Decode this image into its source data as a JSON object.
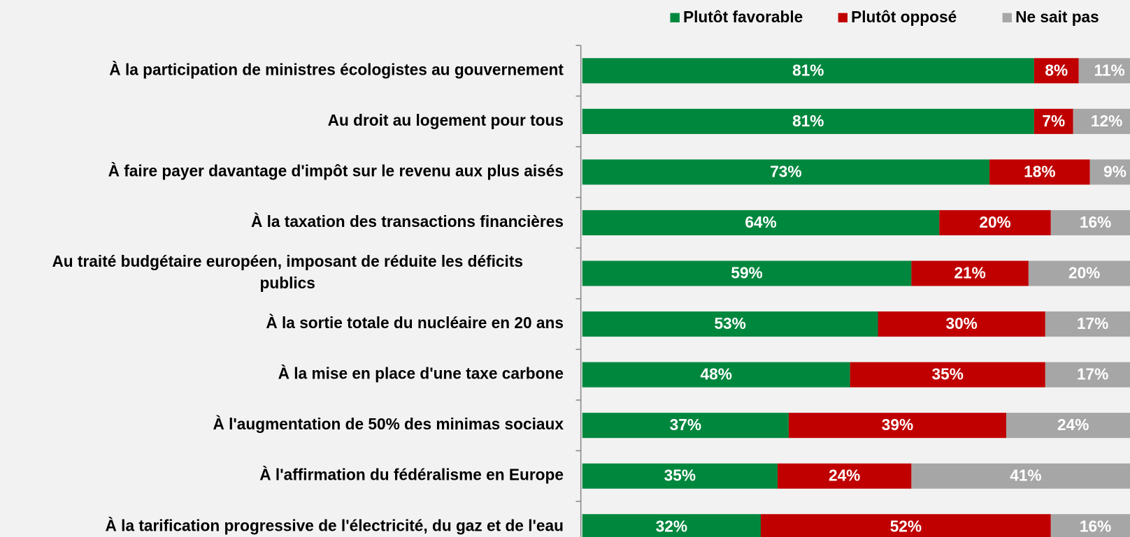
{
  "chart_data": {
    "type": "stacked_barh",
    "categories": [
      "À la participation de ministres écologistes au gouvernement",
      "Au droit au logement pour tous",
      "À faire payer davantage d'impôt sur le revenu aux plus aisés",
      "À la taxation des transactions financières",
      "Au traité budgétaire européen, imposant de réduite les déficits\npublics",
      "À  la sortie totale du nucléaire en 20 ans",
      "À la mise en place d'une taxe carbone",
      "À l'augmentation de 50% des minimas sociaux",
      "À l'affirmation du fédéralisme en Europe",
      "À la tarification progressive de l'électricité, du gaz et de l'eau"
    ],
    "series": [
      {
        "name": "Plutôt favorable",
        "color": "#00873e",
        "values": [
          81,
          81,
          73,
          64,
          59,
          53,
          48,
          37,
          35,
          32
        ],
        "value_labels": [
          "81%",
          "81%",
          "73%",
          "64%",
          "59%",
          "53%",
          "48%",
          "37%",
          "35%",
          "32%"
        ]
      },
      {
        "name": "Plutôt opposé",
        "color": "#c00000",
        "values": [
          8,
          7,
          18,
          20,
          21,
          30,
          35,
          39,
          24,
          52
        ],
        "value_labels": [
          "8%",
          "7%",
          "18%",
          "20%",
          "21%",
          "30%",
          "35%",
          "39%",
          "24%",
          "52%"
        ]
      },
      {
        "name": "Ne sait pas",
        "color": "#a6a6a6",
        "values": [
          11,
          12,
          9,
          16,
          20,
          17,
          17,
          24,
          41,
          16
        ],
        "value_labels": [
          "11%",
          "12%",
          "9%",
          "16%",
          "20%",
          "17%",
          "17%",
          "24%",
          "41%",
          "16%"
        ]
      }
    ],
    "xlim": [
      0,
      100
    ],
    "legend": "top"
  }
}
